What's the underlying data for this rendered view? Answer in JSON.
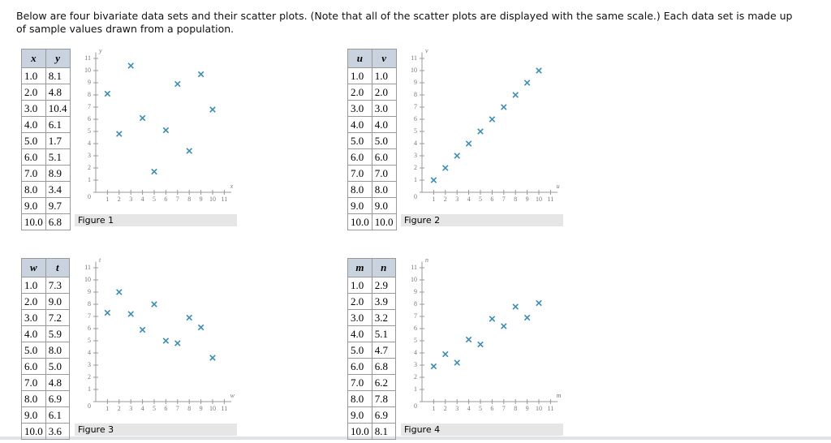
{
  "intro": "Below are four bivariate data sets and their scatter plots. (Note that all of the scatter plots are displayed with the same scale.) Each data set is made up of sample values drawn from a population.",
  "scale": {
    "xticks": [
      1,
      2,
      3,
      4,
      5,
      6,
      7,
      8,
      9,
      10,
      11
    ],
    "yticks": [
      0,
      1,
      2,
      3,
      4,
      5,
      6,
      7,
      8,
      9,
      10,
      11
    ]
  },
  "figures": [
    {
      "headers": [
        "x",
        "y"
      ],
      "caption": "Figure 1",
      "rows": [
        [
          "1.0",
          "8.1"
        ],
        [
          "2.0",
          "4.8"
        ],
        [
          "3.0",
          "10.4"
        ],
        [
          "4.0",
          "6.1"
        ],
        [
          "5.0",
          "1.7"
        ],
        [
          "6.0",
          "5.1"
        ],
        [
          "7.0",
          "8.9"
        ],
        [
          "8.0",
          "3.4"
        ],
        [
          "9.0",
          "9.7"
        ],
        [
          "10.0",
          "6.8"
        ]
      ]
    },
    {
      "headers": [
        "u",
        "v"
      ],
      "caption": "Figure 2",
      "rows": [
        [
          "1.0",
          "1.0"
        ],
        [
          "2.0",
          "2.0"
        ],
        [
          "3.0",
          "3.0"
        ],
        [
          "4.0",
          "4.0"
        ],
        [
          "5.0",
          "5.0"
        ],
        [
          "6.0",
          "6.0"
        ],
        [
          "7.0",
          "7.0"
        ],
        [
          "8.0",
          "8.0"
        ],
        [
          "9.0",
          "9.0"
        ],
        [
          "10.0",
          "10.0"
        ]
      ]
    },
    {
      "headers": [
        "w",
        "t"
      ],
      "caption": "Figure 3",
      "rows": [
        [
          "1.0",
          "7.3"
        ],
        [
          "2.0",
          "9.0"
        ],
        [
          "3.0",
          "7.2"
        ],
        [
          "4.0",
          "5.9"
        ],
        [
          "5.0",
          "8.0"
        ],
        [
          "6.0",
          "5.0"
        ],
        [
          "7.0",
          "4.8"
        ],
        [
          "8.0",
          "6.9"
        ],
        [
          "9.0",
          "6.1"
        ],
        [
          "10.0",
          "3.6"
        ]
      ]
    },
    {
      "headers": [
        "m",
        "n"
      ],
      "caption": "Figure 4",
      "rows": [
        [
          "1.0",
          "2.9"
        ],
        [
          "2.0",
          "3.9"
        ],
        [
          "3.0",
          "3.2"
        ],
        [
          "4.0",
          "5.1"
        ],
        [
          "5.0",
          "4.7"
        ],
        [
          "6.0",
          "6.8"
        ],
        [
          "7.0",
          "6.2"
        ],
        [
          "8.0",
          "7.8"
        ],
        [
          "9.0",
          "6.9"
        ],
        [
          "10.0",
          "8.1"
        ]
      ]
    }
  ]
}
